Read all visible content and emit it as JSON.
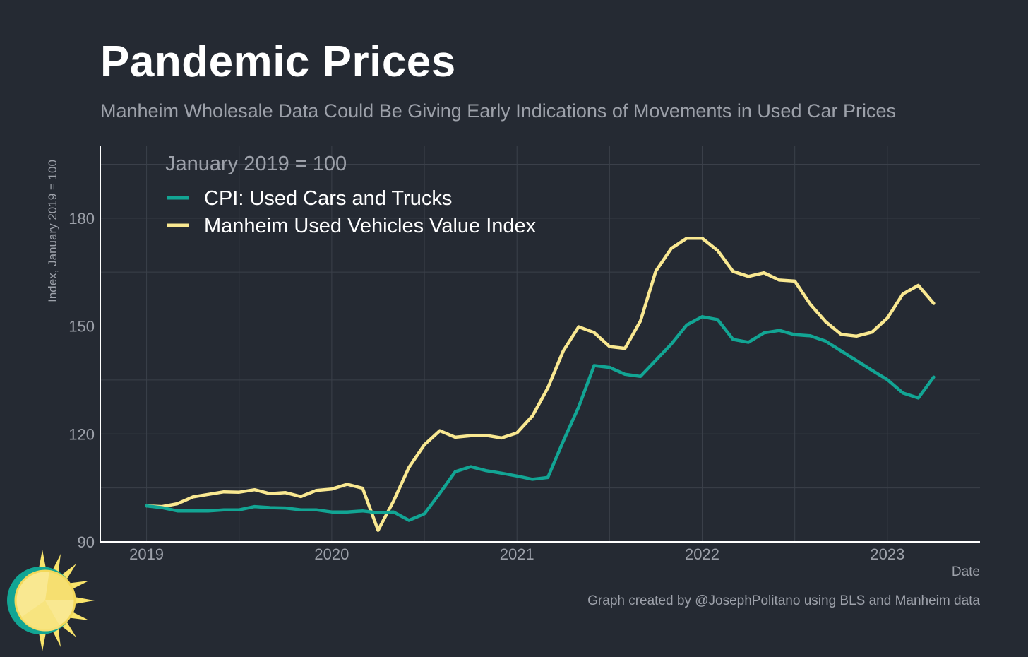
{
  "header": {
    "title": "Pandemic Prices",
    "subtitle": "Manheim Wholesale Data Could Be Giving Early Indications of Movements in Used Car Prices"
  },
  "footer": {
    "credit": "Graph created by @JosephPolitano using BLS and Manheim data"
  },
  "colors": {
    "background": "#252a33",
    "cpi": "#12a594",
    "manheim": "#f9e891",
    "grid": "#3b404a",
    "axis": "#ffffff",
    "muted": "#9da1aa"
  },
  "icons": [
    "sun-logo-icon"
  ],
  "chart_data": {
    "type": "line",
    "title": "Pandemic Prices",
    "subtitle": "Manheim Wholesale Data Could Be Giving Early Indications of Movements in Used Car Prices",
    "xlabel": "Date",
    "ylabel": "Index, January 2019 = 100",
    "legend_title": "January 2019 = 100",
    "legend_position": "top-left",
    "grid": true,
    "ylim": [
      90,
      200
    ],
    "yticks": [
      90,
      120,
      150,
      180
    ],
    "xlim": [
      "2018-10",
      "2023-07"
    ],
    "xticks": [
      "2019",
      "2020",
      "2021",
      "2022",
      "2023"
    ],
    "x": [
      "2019-01",
      "2019-02",
      "2019-03",
      "2019-04",
      "2019-05",
      "2019-06",
      "2019-07",
      "2019-08",
      "2019-09",
      "2019-10",
      "2019-11",
      "2019-12",
      "2020-01",
      "2020-02",
      "2020-03",
      "2020-04",
      "2020-05",
      "2020-06",
      "2020-07",
      "2020-08",
      "2020-09",
      "2020-10",
      "2020-11",
      "2020-12",
      "2021-01",
      "2021-02",
      "2021-03",
      "2021-04",
      "2021-05",
      "2021-06",
      "2021-07",
      "2021-08",
      "2021-09",
      "2021-10",
      "2021-11",
      "2021-12",
      "2022-01",
      "2022-02",
      "2022-03",
      "2022-04",
      "2022-05",
      "2022-06",
      "2022-07",
      "2022-08",
      "2022-09",
      "2022-10",
      "2022-11",
      "2022-12",
      "2023-01",
      "2023-02",
      "2023-03",
      "2023-04"
    ],
    "series": [
      {
        "name": "CPI: Used Cars and Trucks",
        "color": "#12a594",
        "values": [
          100,
          99.5,
          98.6,
          98.6,
          98.6,
          98.9,
          98.9,
          99.8,
          99.5,
          99.4,
          98.9,
          98.9,
          98.3,
          98.3,
          98.6,
          98.1,
          98.3,
          96.0,
          97.8,
          103.5,
          109.5,
          110.9,
          109.8,
          109.1,
          108.3,
          107.4,
          107.9,
          118.0,
          127.5,
          139.0,
          138.5,
          136.6,
          136.0,
          140.5,
          145.0,
          150.3,
          152.6,
          151.8,
          146.3,
          145.5,
          148.1,
          148.8,
          147.6,
          147.3,
          145.8,
          143.1,
          140.4,
          137.7,
          135.1,
          131.4,
          130.0,
          135.8
        ]
      },
      {
        "name": "Manheim Used Vehicles Value Index",
        "color": "#f9e891",
        "values": [
          100,
          99.8,
          100.6,
          102.5,
          103.2,
          103.9,
          103.8,
          104.5,
          103.4,
          103.7,
          102.6,
          104.3,
          104.7,
          106.0,
          104.9,
          93.2,
          101.3,
          110.7,
          117.0,
          120.9,
          119.1,
          119.5,
          119.6,
          118.9,
          120.3,
          125.0,
          132.8,
          143.1,
          149.8,
          148.2,
          144.3,
          143.8,
          151.4,
          165.3,
          171.6,
          174.4,
          174.4,
          171.0,
          165.2,
          163.8,
          164.8,
          162.8,
          162.5,
          156.1,
          151.2,
          147.7,
          147.2,
          148.3,
          152.2,
          158.9,
          161.3,
          156.3
        ]
      }
    ]
  }
}
